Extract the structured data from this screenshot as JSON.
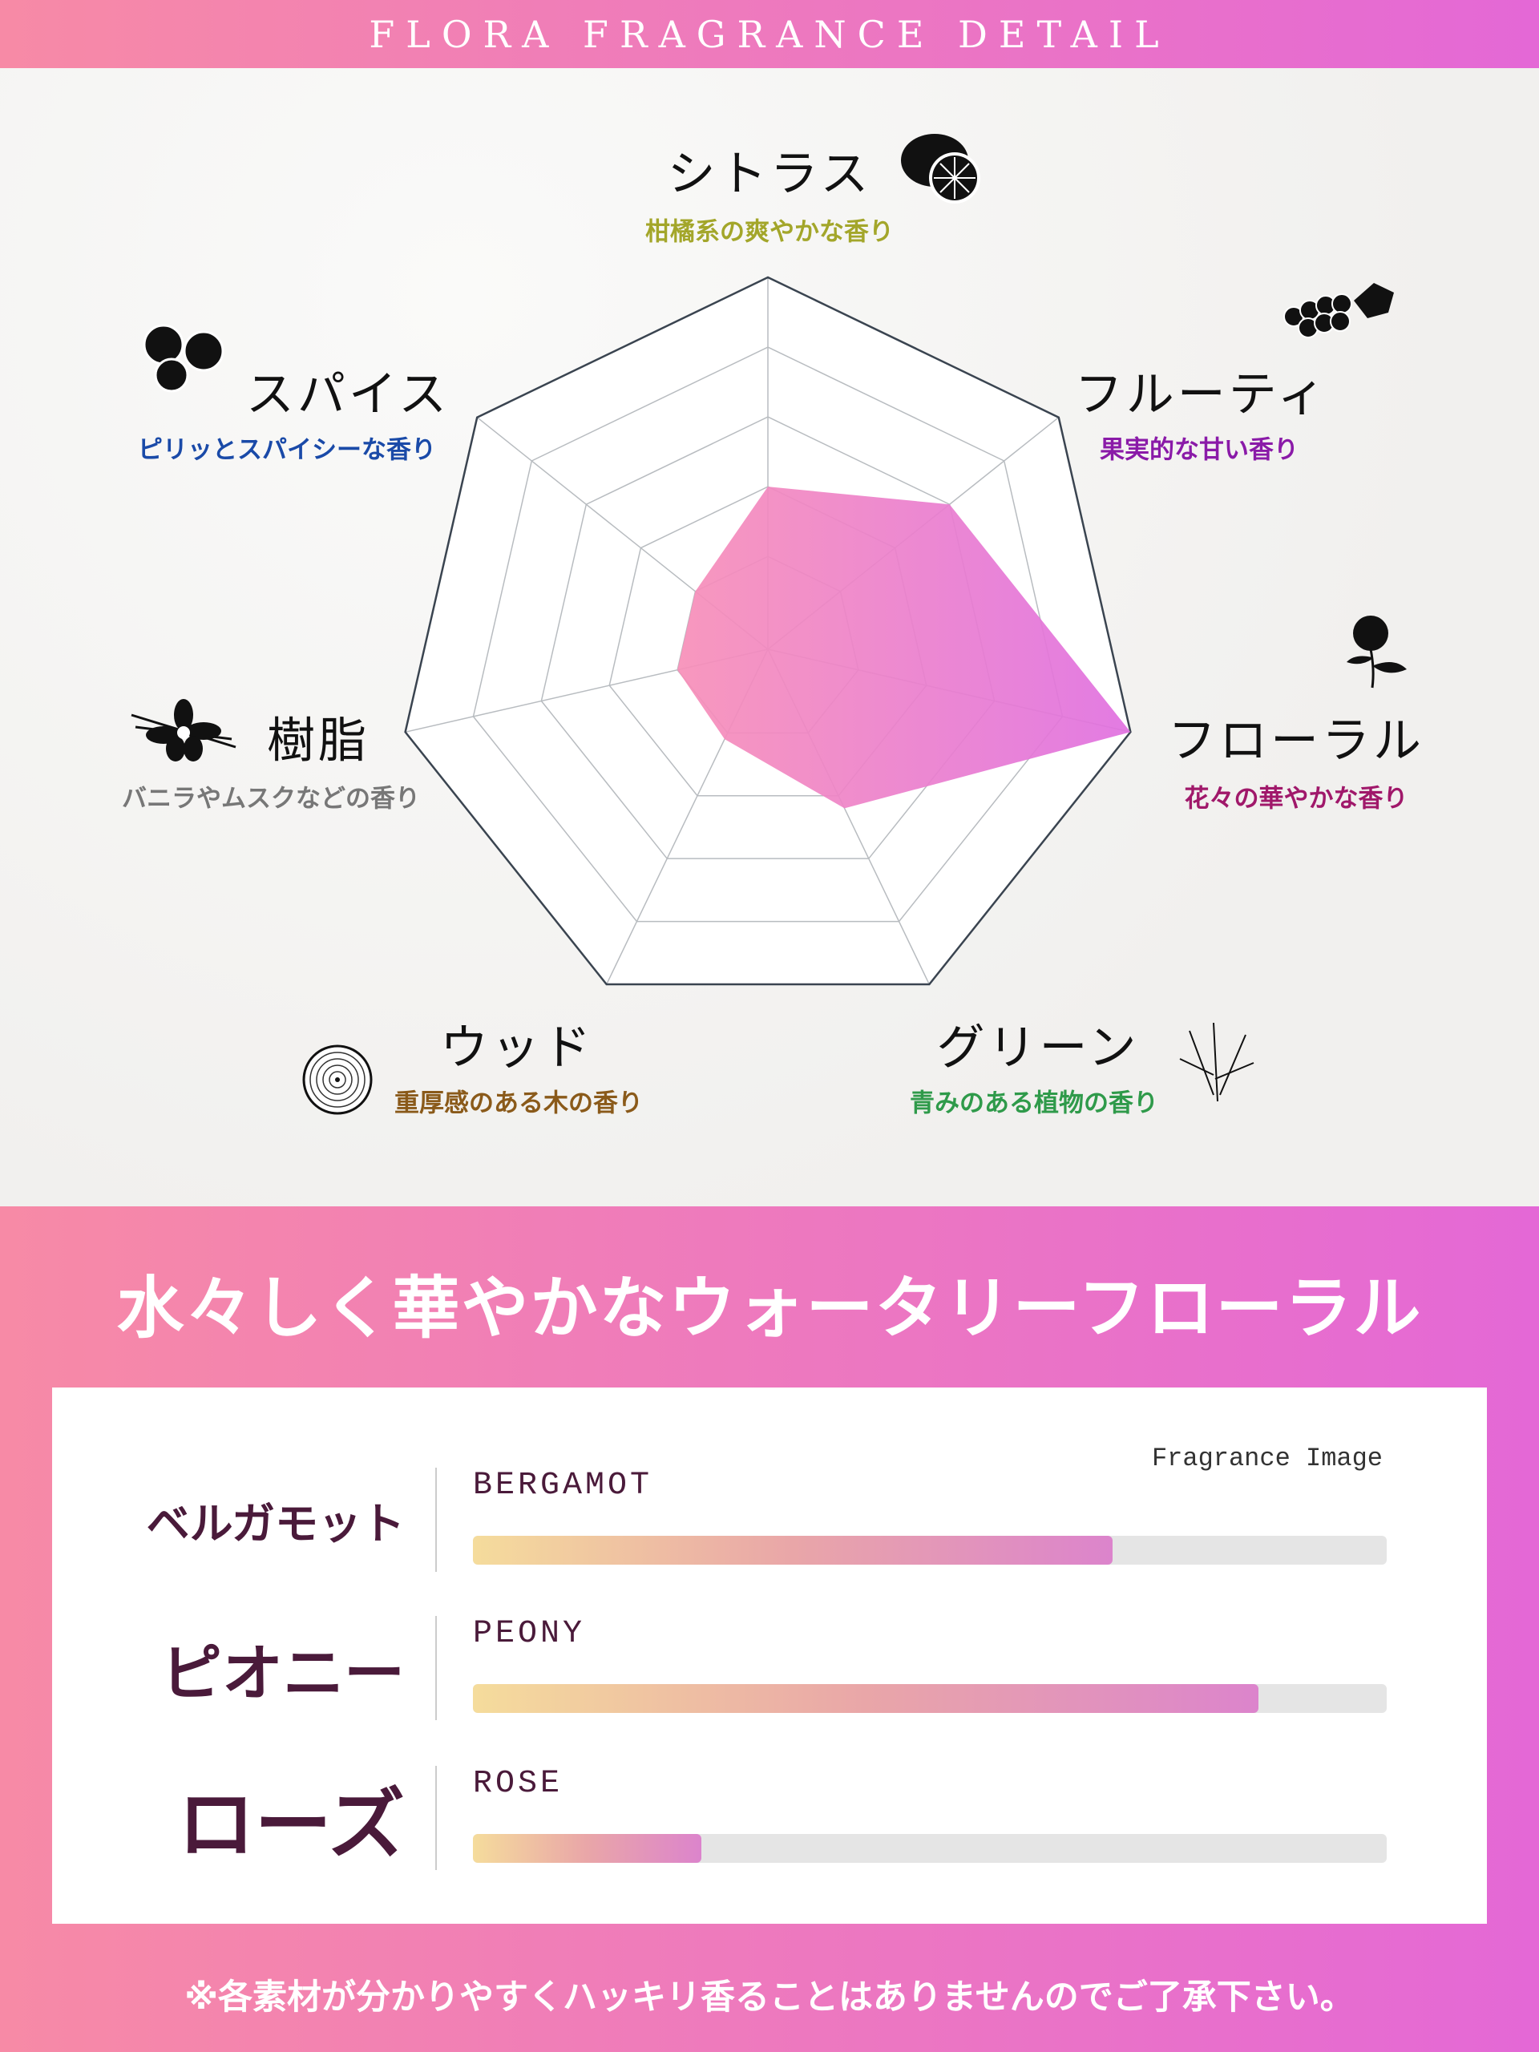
{
  "header": {
    "title": "FLORA FRAGRANCE DETAIL"
  },
  "chart_data": {
    "type": "radar",
    "levels": 5,
    "axes": [
      {
        "label": "シトラス",
        "description": "柑橘系の爽やかな香り",
        "value": 2,
        "color": "#a3a62a",
        "icon": "lemon-icon"
      },
      {
        "label": "フルーティ",
        "description": "果実的な甘い香り",
        "value": 3,
        "color": "#8a1aa8",
        "icon": "grape-icon"
      },
      {
        "label": "フローラル",
        "description": "花々の華やかな香り",
        "value": 5,
        "color": "#a0186a",
        "icon": "flower-icon"
      },
      {
        "label": "グリーン",
        "description": "青みのある植物の香り",
        "value": 2.2,
        "color": "#2f9a4a",
        "icon": "herb-icon"
      },
      {
        "label": "ウッド",
        "description": "重厚感のある木の香り",
        "value": 1.1,
        "color": "#8a5a1a",
        "icon": "wood-slice-icon"
      },
      {
        "label": "樹脂",
        "description": "バニラやムスクなどの香り",
        "value": 1,
        "color": "#777777",
        "icon": "vanilla-icon"
      },
      {
        "label": "スパイス",
        "description": "ピリッとスパイシーな香り",
        "value": 1,
        "color": "#1a4aa8",
        "icon": "peppercorn-icon"
      }
    ],
    "fill_colors": [
      "#f78fb8",
      "#e070e0"
    ]
  },
  "summary": {
    "headline": "水々しく華やかなウォータリーフローラル",
    "legend": "Fragrance Image",
    "notes": [
      {
        "jp": "ベルガモット",
        "en": "BERGAMOT",
        "level": 70
      },
      {
        "jp": "ピオニー",
        "en": "PEONY",
        "level": 86
      },
      {
        "jp": "ローズ",
        "en": "ROSE",
        "level": 25
      }
    ],
    "disclaimer": "※各素材が分かりやすくハッキリ香ることはありませんのでご了承下さい。"
  }
}
